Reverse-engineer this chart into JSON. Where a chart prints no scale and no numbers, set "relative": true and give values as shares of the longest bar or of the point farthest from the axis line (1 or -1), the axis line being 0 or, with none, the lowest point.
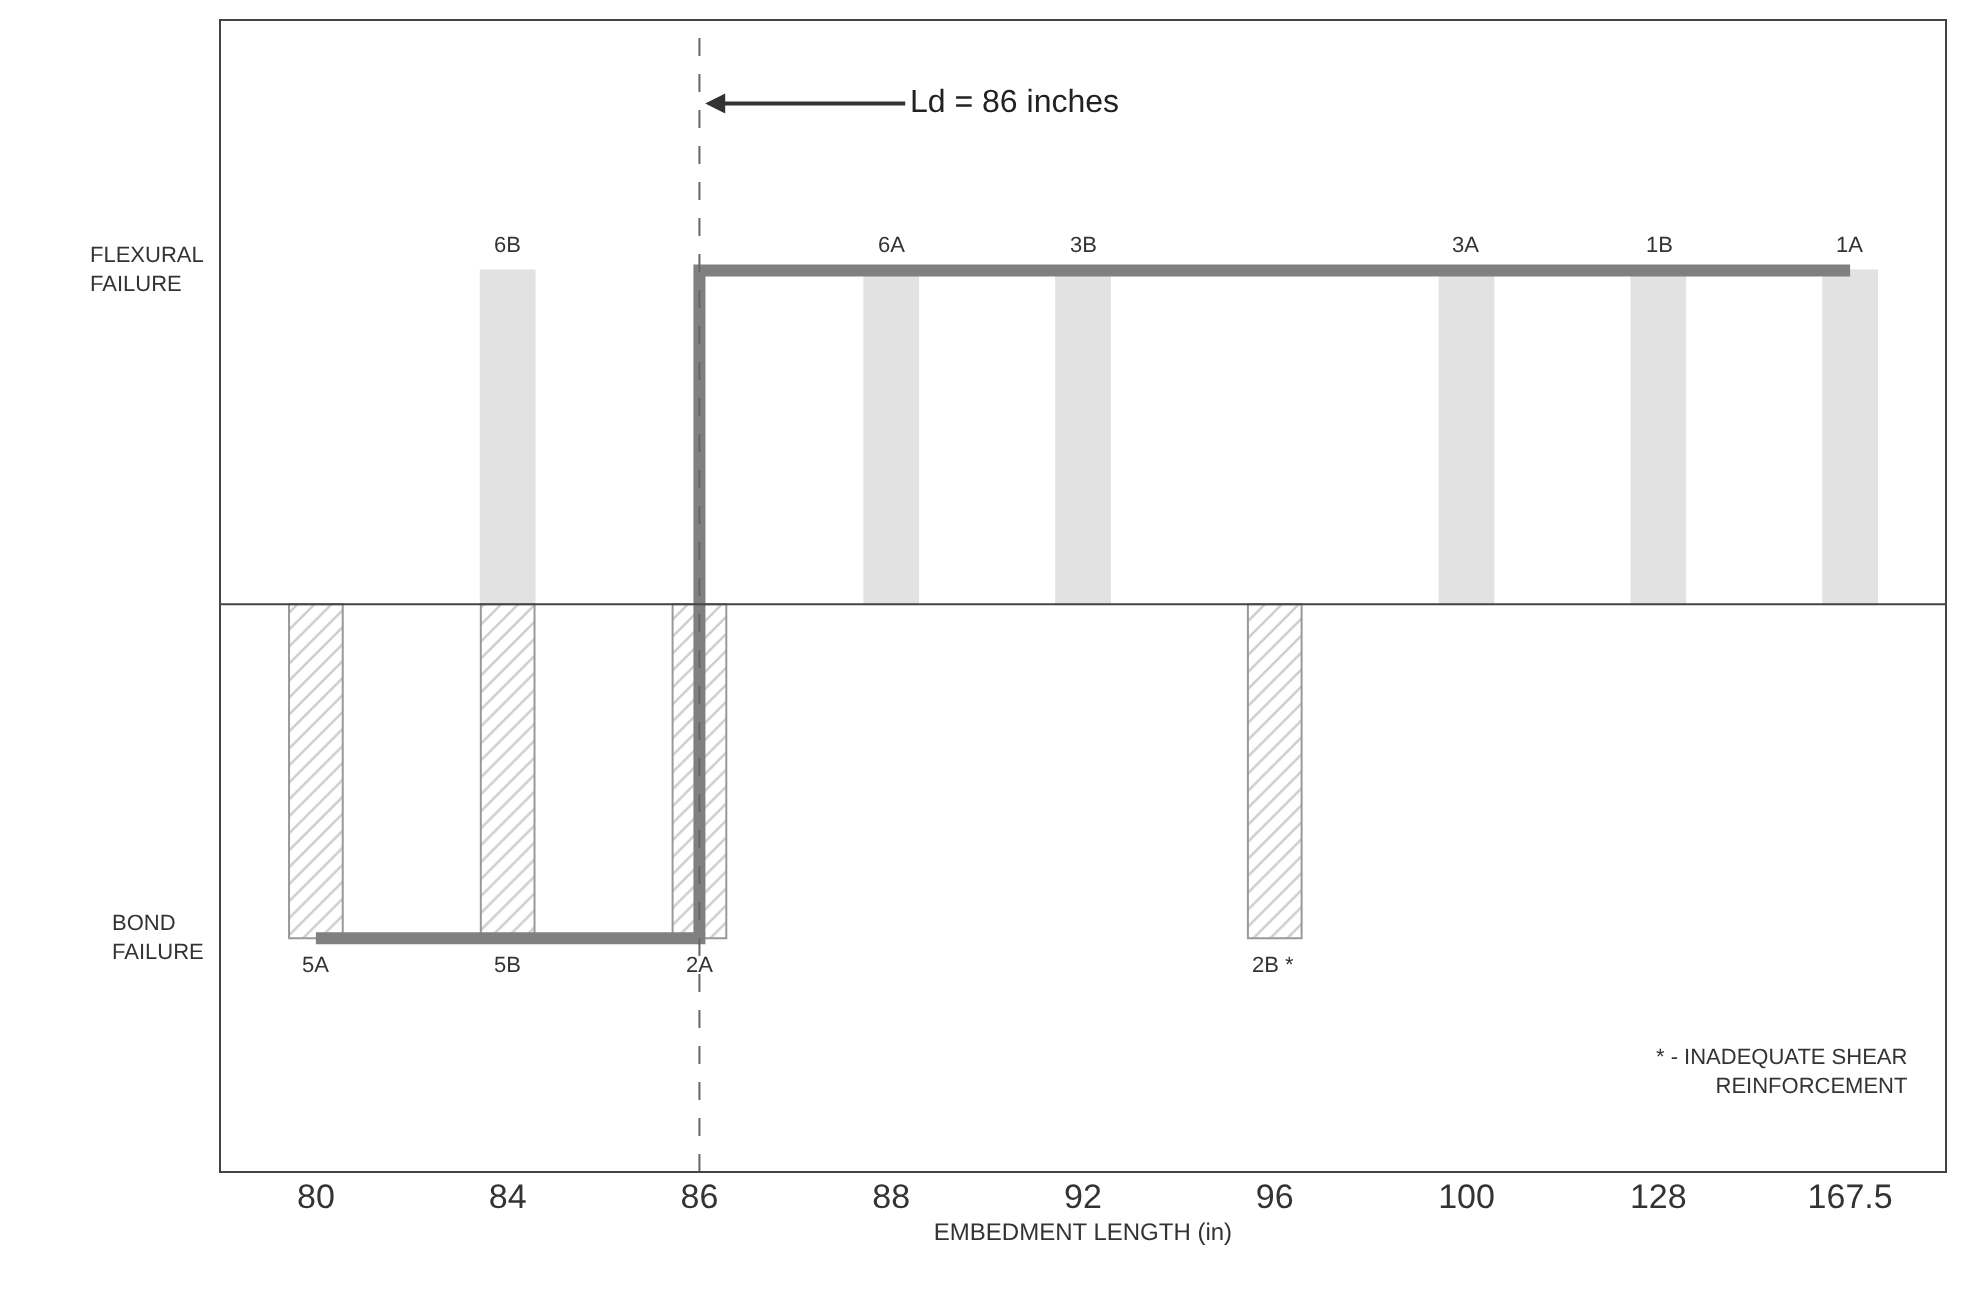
{
  "chart_data": {
    "type": "bar",
    "xlabel": "EMBEDMENT LENGTH (in)",
    "categories": [
      "80",
      "84",
      "86",
      "88",
      "92",
      "96",
      "100",
      "128",
      "167.5"
    ],
    "relative": true,
    "series": [
      {
        "color": "#e2e2e2",
        "values": [
          null,
          1,
          null,
          1,
          1,
          null,
          1,
          1,
          1
        ]
      },
      {
        "color": "#999999",
        "values": [
          -1,
          -1,
          -1,
          null,
          null,
          -1,
          null,
          null,
          null
        ]
      },
      {
        "type": "step",
        "color": "#808080",
        "values": [
          -1,
          -1,
          -1,
          1,
          1,
          1,
          1,
          1,
          1
        ]
      }
    ],
    "ref_lines": [
      {
        "axis": "x",
        "value": "86",
        "label": "Ld = 86 inches",
        "line_style": "dashed"
      }
    ],
    "annotations": [
      {
        "text": "6B",
        "x": "84",
        "y": 1
      },
      {
        "text": "6A",
        "x": "88",
        "y": 1
      },
      {
        "text": "3B",
        "x": "92",
        "y": 1
      },
      {
        "text": "3A",
        "x": "100",
        "y": 1
      },
      {
        "text": "1B",
        "x": "128",
        "y": 1
      },
      {
        "text": "1A",
        "x": "167.5",
        "y": 1
      },
      {
        "text": "5A",
        "x": "80",
        "y": -1
      },
      {
        "text": "5B",
        "x": "84",
        "y": -1
      },
      {
        "text": "2A",
        "x": "86",
        "y": -1
      },
      {
        "text": "2B *",
        "x": "96",
        "y": -1
      },
      "FLEXURAL FAILURE",
      "BOND FAILURE",
      "* - INADEQUATE SHEAR REINFORCEMENT"
    ],
    "line_style": "solid"
  }
}
